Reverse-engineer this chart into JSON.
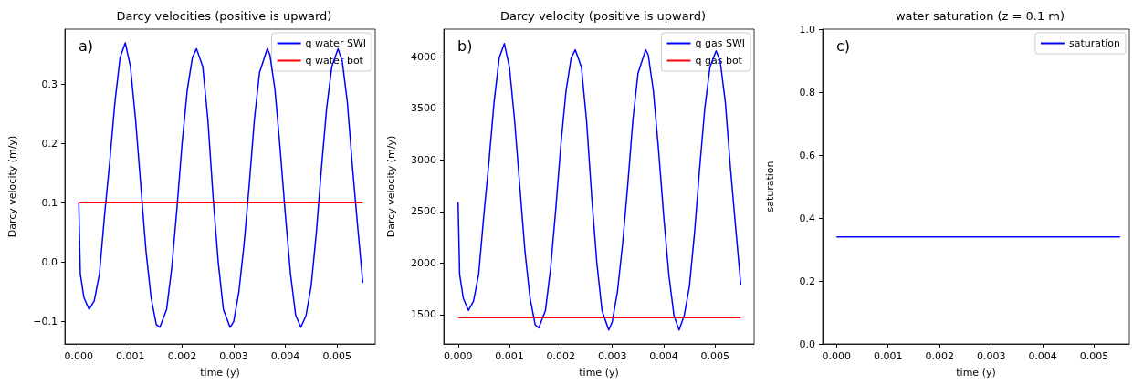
{
  "chart_data": [
    {
      "type": "line",
      "title": "Darcy velocities (positive is upward)",
      "xlabel": "time (y)",
      "ylabel": "Darcy velocity (m/y)",
      "annotations": [
        "a)"
      ],
      "legend": "top right",
      "grid": false,
      "xlim": [
        -0.00027,
        0.00574
      ],
      "ylim": [
        -0.138,
        0.393
      ],
      "xticks": [
        {
          "value": 0,
          "label": "0.000"
        },
        {
          "value": 0.001,
          "label": "0.001"
        },
        {
          "value": 0.002,
          "label": "0.002"
        },
        {
          "value": 0.003,
          "label": "0.003"
        },
        {
          "value": 0.004,
          "label": "0.004"
        },
        {
          "value": 0.005,
          "label": "0.005"
        }
      ],
      "yticks": [
        {
          "value": -0.1,
          "label": "−0.1"
        },
        {
          "value": 0,
          "label": "0.0"
        },
        0.1,
        0.2,
        0.3
      ],
      "series": [
        {
          "name": "q water SWI",
          "color": "#0000ff",
          "x": [
            0,
            3e-05,
            0.0001,
            0.0002,
            0.0003,
            0.0004,
            0.0005,
            0.0006,
            0.0007,
            0.0008,
            0.0009,
            0.001,
            0.0011,
            0.0012,
            0.0013,
            0.0014,
            0.0015,
            0.00157,
            0.0017,
            0.0018,
            0.0019,
            0.002,
            0.0021,
            0.0022,
            0.00228,
            0.0024,
            0.0025,
            0.0026,
            0.0027,
            0.0028,
            0.00293,
            0.003,
            0.0031,
            0.0032,
            0.0033,
            0.0034,
            0.0035,
            0.00365,
            0.0037,
            0.0038,
            0.0039,
            0.004,
            0.0041,
            0.0042,
            0.0043,
            0.0044,
            0.0045,
            0.0046,
            0.0047,
            0.0048,
            0.0049,
            0.00502,
            0.0051,
            0.0052,
            0.0053,
            0.0054,
            0.0055
          ],
          "values": [
            0.1,
            -0.02,
            -0.06,
            -0.08,
            -0.065,
            -0.02,
            0.08,
            0.17,
            0.27,
            0.345,
            0.37,
            0.33,
            0.24,
            0.13,
            0.02,
            -0.06,
            -0.105,
            -0.11,
            -0.08,
            -0.01,
            0.09,
            0.2,
            0.29,
            0.345,
            0.36,
            0.33,
            0.24,
            0.11,
            0.0,
            -0.08,
            -0.11,
            -0.1,
            -0.05,
            0.03,
            0.13,
            0.24,
            0.32,
            0.36,
            0.35,
            0.29,
            0.19,
            0.08,
            -0.02,
            -0.09,
            -0.11,
            -0.09,
            -0.04,
            0.05,
            0.16,
            0.26,
            0.33,
            0.36,
            0.34,
            0.27,
            0.16,
            0.06,
            -0.035
          ]
        },
        {
          "name": "q water bot",
          "color": "#ff0000",
          "x": [
            0,
            0.0055
          ],
          "values": [
            0.1,
            0.1
          ]
        }
      ]
    },
    {
      "type": "line",
      "title": "Darcy velocity (positive is upward)",
      "xlabel": "time (y)",
      "ylabel": "Darcy velocity (m/y)",
      "annotations": [
        "b)"
      ],
      "legend": "top right",
      "grid": false,
      "xlim": [
        -0.00028,
        0.00576
      ],
      "ylim": [
        1215,
        4270
      ],
      "xticks": [
        {
          "value": 0,
          "label": "0.000"
        },
        {
          "value": 0.001,
          "label": "0.001"
        },
        {
          "value": 0.002,
          "label": "0.002"
        },
        {
          "value": 0.003,
          "label": "0.003"
        },
        {
          "value": 0.004,
          "label": "0.004"
        },
        {
          "value": 0.005,
          "label": "0.005"
        }
      ],
      "yticks": [
        1500,
        2000,
        2500,
        3000,
        3500,
        4000
      ],
      "series": [
        {
          "name": "q gas SWI",
          "color": "#0000ff",
          "x": [
            0,
            3e-05,
            0.0001,
            0.0002,
            0.0003,
            0.0004,
            0.0005,
            0.0006,
            0.0007,
            0.0008,
            0.0009,
            0.001,
            0.0011,
            0.0012,
            0.0013,
            0.0014,
            0.0015,
            0.00157,
            0.0017,
            0.0018,
            0.0019,
            0.002,
            0.0021,
            0.0022,
            0.00228,
            0.0024,
            0.0025,
            0.0026,
            0.0027,
            0.0028,
            0.00293,
            0.003,
            0.0031,
            0.0032,
            0.0033,
            0.0034,
            0.0035,
            0.00365,
            0.0037,
            0.0038,
            0.0039,
            0.004,
            0.0041,
            0.0042,
            0.0043,
            0.0044,
            0.0045,
            0.0046,
            0.0047,
            0.0048,
            0.0049,
            0.00502,
            0.0051,
            0.0052,
            0.0053,
            0.0054,
            0.0055
          ],
          "values": [
            2590,
            1890,
            1660,
            1540,
            1630,
            1890,
            2460,
            2980,
            3560,
            3990,
            4130,
            3900,
            3380,
            2750,
            2120,
            1660,
            1400,
            1370,
            1540,
            1950,
            2520,
            3150,
            3670,
            3990,
            4070,
            3900,
            3380,
            2640,
            2000,
            1540,
            1350,
            1430,
            1720,
            2180,
            2750,
            3380,
            3840,
            4070,
            4020,
            3670,
            3100,
            2460,
            1890,
            1490,
            1350,
            1490,
            1770,
            2290,
            2920,
            3500,
            3900,
            4060,
            3960,
            3560,
            2920,
            2350,
            1790
          ]
        },
        {
          "name": "q gas bot",
          "color": "#ff0000",
          "x": [
            0,
            0.0055
          ],
          "values": [
            1470,
            1470
          ]
        }
      ]
    },
    {
      "type": "line",
      "title": "water saturation (z = 0.1 m)",
      "xlabel": "time (y)",
      "ylabel": "saturation",
      "annotations": [
        "c)"
      ],
      "legend": "top right",
      "grid": false,
      "xlim": [
        -0.00027,
        0.00568
      ],
      "ylim": [
        0,
        1
      ],
      "xticks": [
        {
          "value": 0,
          "label": "0.000"
        },
        {
          "value": 0.001,
          "label": "0.001"
        },
        {
          "value": 0.002,
          "label": "0.002"
        },
        {
          "value": 0.003,
          "label": "0.003"
        },
        {
          "value": 0.004,
          "label": "0.004"
        },
        {
          "value": 0.005,
          "label": "0.005"
        }
      ],
      "yticks": [
        {
          "value": 0,
          "label": "0.0"
        },
        0.2,
        0.4,
        0.6,
        0.8,
        {
          "value": 1,
          "label": "1.0"
        }
      ],
      "series": [
        {
          "name": "saturation",
          "color": "#0000ff",
          "x": [
            0,
            0.0055
          ],
          "values": [
            0.34,
            0.34
          ]
        }
      ]
    }
  ]
}
